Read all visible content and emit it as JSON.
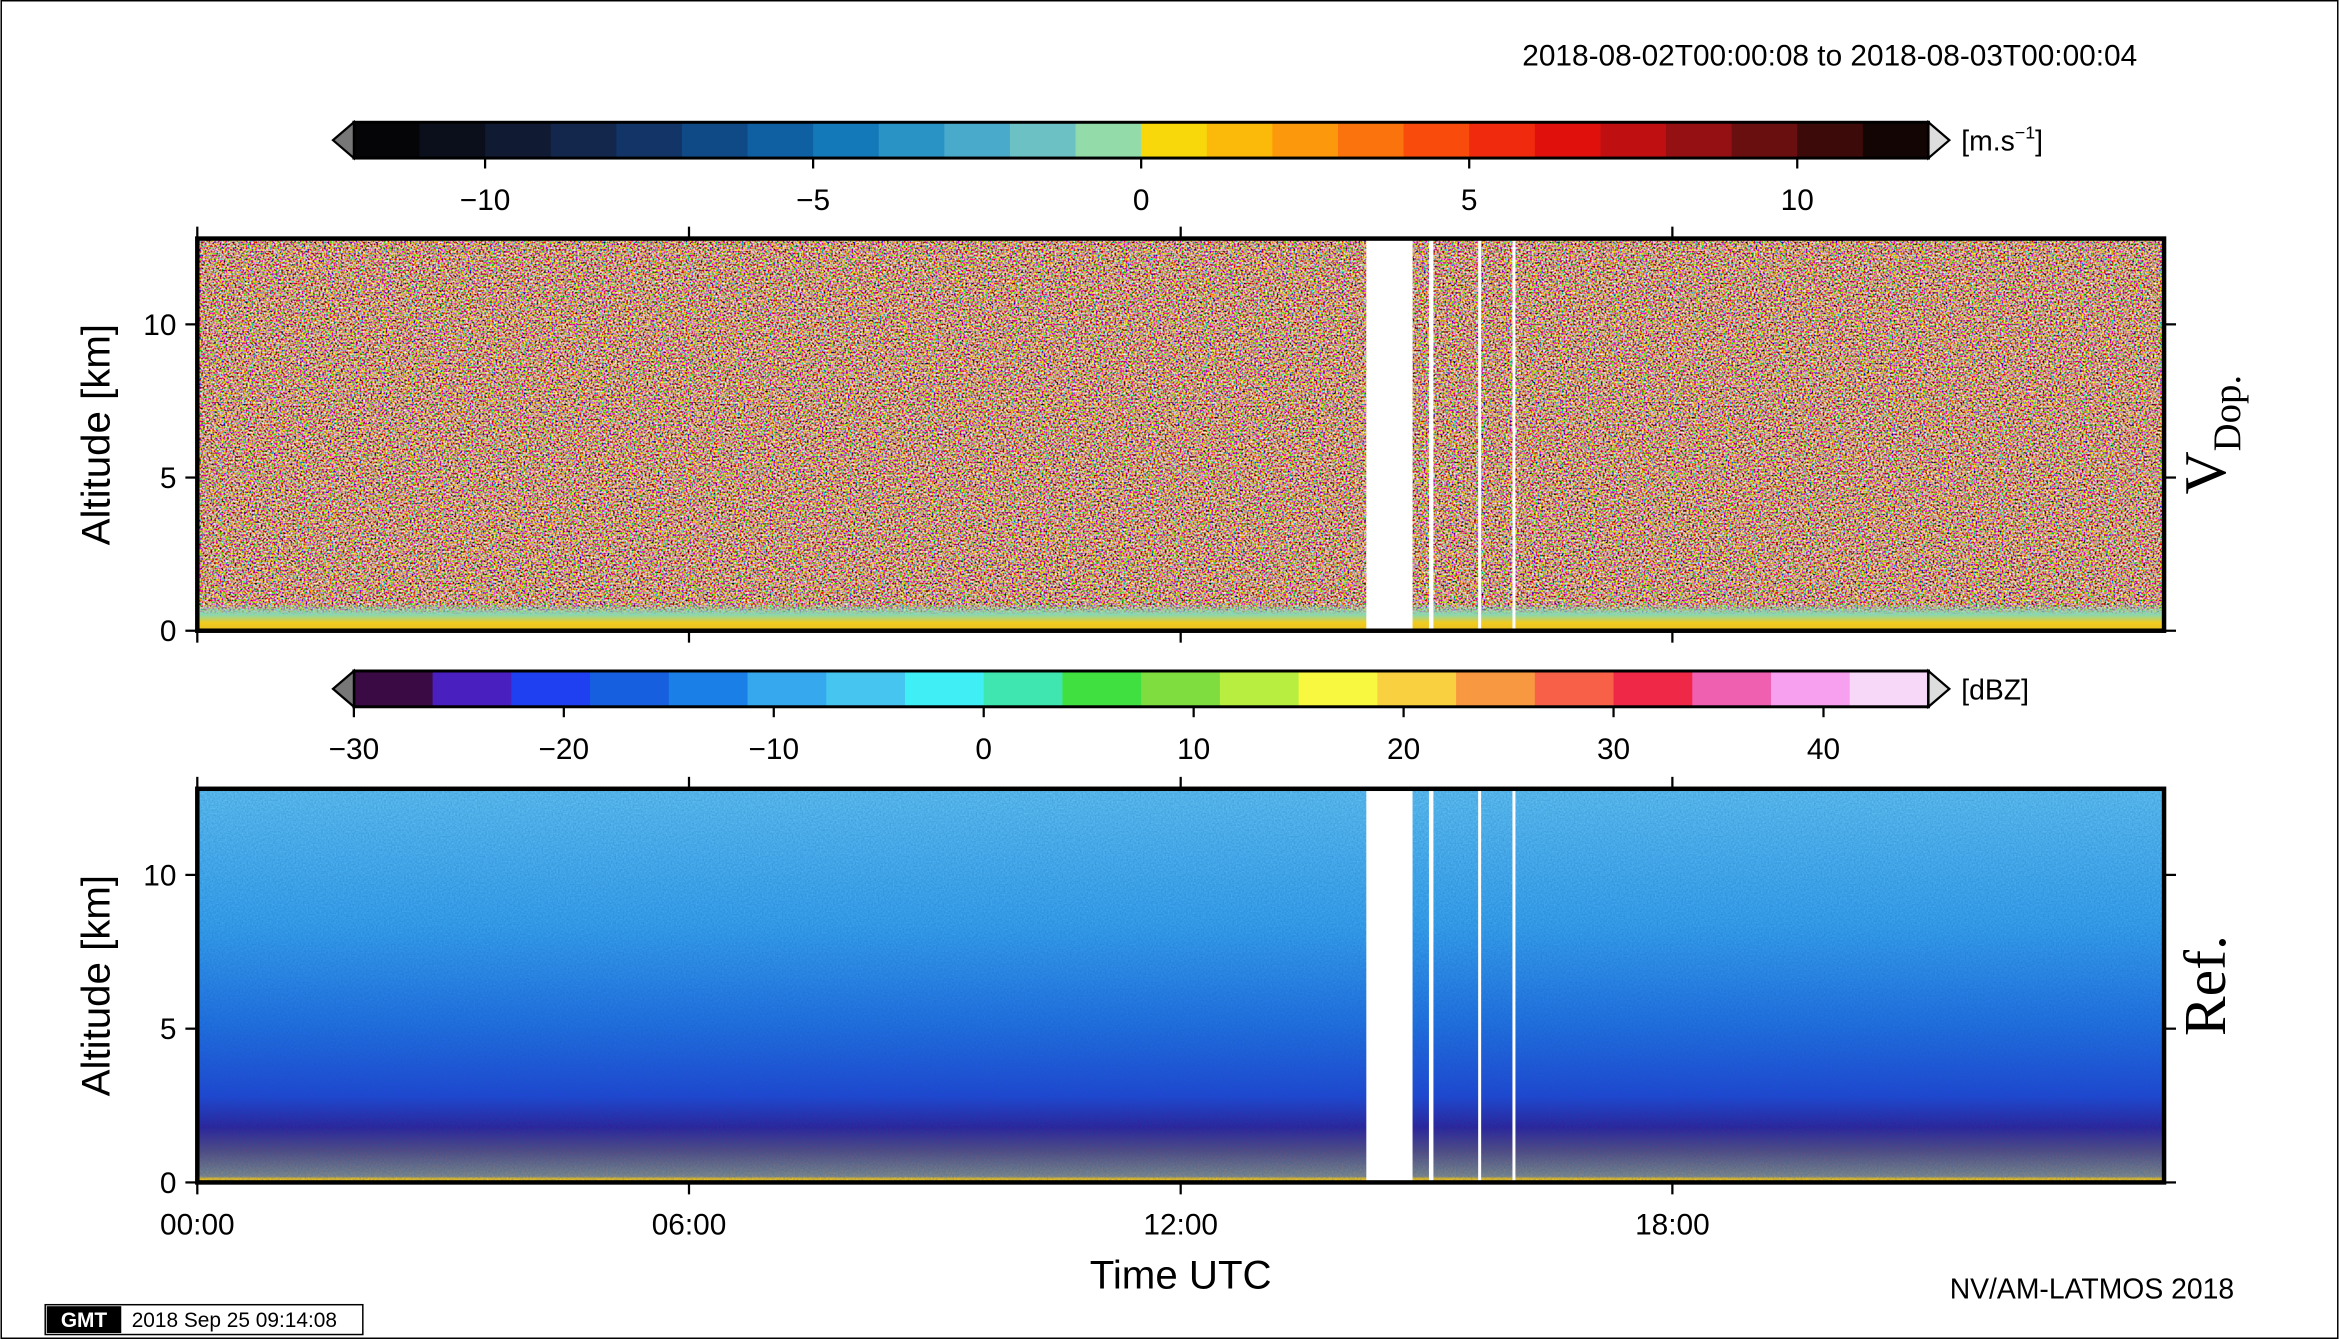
{
  "title": "2018-08-02T00:00:08 to 2018-08-03T00:00:04",
  "credit": "NV/AM-LATMOS 2018",
  "stamp": {
    "logo": "GMT",
    "text": "2018 Sep 25 09:14:08"
  },
  "chart_data": [
    {
      "type": "heatmap",
      "ylabel": "Altitude [km]",
      "panel_label": "V",
      "panel_label_sub": "Dop.",
      "ylim": [
        0,
        12.8
      ],
      "yticks": [
        0,
        5,
        10
      ],
      "colorbar": {
        "unit": [
          "[m.s",
          "−1",
          "]"
        ],
        "lim": [
          -12,
          12
        ],
        "ticks": [
          {
            "value": -10,
            "label": "−10"
          },
          {
            "value": -5,
            "label": "−5"
          },
          0,
          5,
          10
        ],
        "colors": [
          "#050508",
          "#0b0f1c",
          "#111a33",
          "#13264c",
          "#123466",
          "#0f4a86",
          "#0e60a3",
          "#1479b8",
          "#2a93c6",
          "#4aaacc",
          "#6cc1c4",
          "#93dcaa",
          "#f8d80a",
          "#fbb90a",
          "#fc980b",
          "#fb730c",
          "#f94b0c",
          "#f02a0c",
          "#e0110d",
          "#c00f10",
          "#951012",
          "#6a0f10",
          "#3d0a0a",
          "#140505"
        ]
      }
    },
    {
      "type": "heatmap",
      "ylabel": "Altitude [km]",
      "panel_label": "Ref.",
      "xlabel": "Time UTC",
      "ylim": [
        0,
        12.8
      ],
      "yticks": [
        0,
        5,
        10
      ],
      "xlim": [
        0,
        24
      ],
      "xticks": [
        {
          "value": 0,
          "label": "00:00"
        },
        {
          "value": 6,
          "label": "06:00"
        },
        {
          "value": 12,
          "label": "12:00"
        },
        {
          "value": 18,
          "label": "18:00"
        }
      ],
      "colorbar": {
        "unit": [
          "[dBZ]"
        ],
        "lim": [
          -30,
          45
        ],
        "ticks": [
          {
            "value": -30,
            "label": "−30"
          },
          {
            "value": -20,
            "label": "−20"
          },
          {
            "value": -10,
            "label": "−10"
          },
          0,
          10,
          20,
          30,
          40
        ],
        "colors": [
          "#3a0a45",
          "#4a1fc0",
          "#1f40f0",
          "#1660e0",
          "#1a80e8",
          "#35a8ee",
          "#45c5f0",
          "#40eef5",
          "#40e6b0",
          "#40e040",
          "#80dd40",
          "#b8ee40",
          "#f8f840",
          "#f8d040",
          "#f89840",
          "#f86048",
          "#f02848",
          "#f060b0",
          "#f8a0f0",
          "#f8d8f8"
        ]
      }
    }
  ]
}
